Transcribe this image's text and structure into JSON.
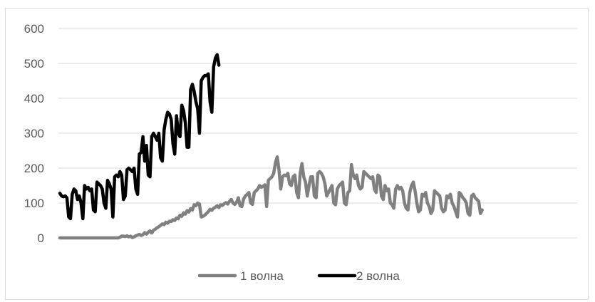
{
  "chart_data": {
    "type": "line",
    "title": "",
    "xlabel": "",
    "ylabel": "",
    "ylim": [
      0,
      600
    ],
    "yticks": [
      0,
      100,
      200,
      300,
      400,
      500,
      600
    ],
    "ytick_labels": [
      "0",
      "100",
      "200",
      "300",
      "400",
      "500",
      "600"
    ],
    "grid": true,
    "legend_position": "bottom",
    "x_count": 240,
    "series": [
      {
        "name": "1 волна",
        "color": "#808080",
        "values": [
          0,
          0,
          0,
          0,
          0,
          0,
          0,
          0,
          0,
          0,
          0,
          0,
          0,
          0,
          0,
          0,
          0,
          0,
          0,
          0,
          0,
          0,
          0,
          0,
          0,
          0,
          0,
          0,
          0,
          0,
          0,
          0,
          0,
          0,
          2,
          5,
          5,
          4,
          6,
          3,
          5,
          1,
          3,
          6,
          8,
          10,
          7,
          9,
          15,
          11,
          16,
          20,
          14,
          22,
          25,
          29,
          32,
          36,
          40,
          38,
          45,
          42,
          48,
          47,
          52,
          50,
          57,
          55,
          65,
          62,
          72,
          68,
          78,
          74,
          84,
          80,
          95,
          92,
          100,
          97,
          60,
          62,
          65,
          70,
          75,
          82,
          79,
          85,
          88,
          92,
          87,
          95,
          93,
          98,
          101,
          97,
          105,
          110,
          100,
          96,
          102,
          115,
          92,
          90,
          112,
          120,
          125,
          130,
          100,
          96,
          130,
          135,
          140,
          150,
          145,
          148,
          152,
          90,
          165,
          170,
          175,
          185,
          215,
          232,
          195,
          140,
          175,
          180,
          178,
          185,
          155,
          150,
          175,
          180,
          130,
          115,
          185,
          213,
          175,
          160,
          120,
          150,
          175,
          175,
          120,
          115,
          185,
          190,
          185,
          175,
          155,
          120,
          130,
          140,
          150,
          100,
          95,
          140,
          150,
          155,
          160,
          100,
          95,
          130,
          135,
          210,
          180,
          170,
          180,
          150,
          140,
          145,
          190,
          185,
          180,
          175,
          170,
          175,
          140,
          130,
          180,
          175,
          120,
          110,
          150,
          135,
          140,
          100,
          95,
          85,
          140,
          150,
          140,
          145,
          135,
          100,
          85,
          80,
          130,
          150,
          160,
          135,
          100,
          75,
          80,
          125,
          120,
          130,
          100,
          90,
          70,
          80,
          135,
          130,
          125,
          120,
          85,
          75,
          80,
          120,
          115,
          125,
          100,
          90,
          75,
          60,
          130,
          125,
          115,
          110,
          100,
          70,
          65,
          120,
          125,
          115,
          110,
          105,
          70,
          80
        ]
      },
      {
        "name": "2 волна",
        "color": "#000000",
        "values": [
          128,
          120,
          118,
          120,
          115,
          60,
          55,
          125,
          140,
          135,
          110,
          120,
          100,
          55,
          150,
          140,
          145,
          135,
          140,
          80,
          75,
          160,
          155,
          150,
          140,
          100,
          85,
          165,
          155,
          140,
          60,
          175,
          180,
          175,
          190,
          180,
          110,
          120,
          195,
          200,
          195,
          190,
          200,
          140,
          125,
          240,
          245,
          290,
          220,
          265,
          180,
          175,
          290,
          300,
          290,
          280,
          300,
          230,
          220,
          310,
          340,
          360,
          355,
          340,
          270,
          240,
          350,
          300,
          290,
          380,
          365,
          330,
          260,
          260,
          425,
          440,
          420,
          390,
          370,
          300,
          450,
          460,
          465,
          465,
          470,
          390,
          360,
          490,
          515,
          525,
          495
        ]
      }
    ]
  }
}
